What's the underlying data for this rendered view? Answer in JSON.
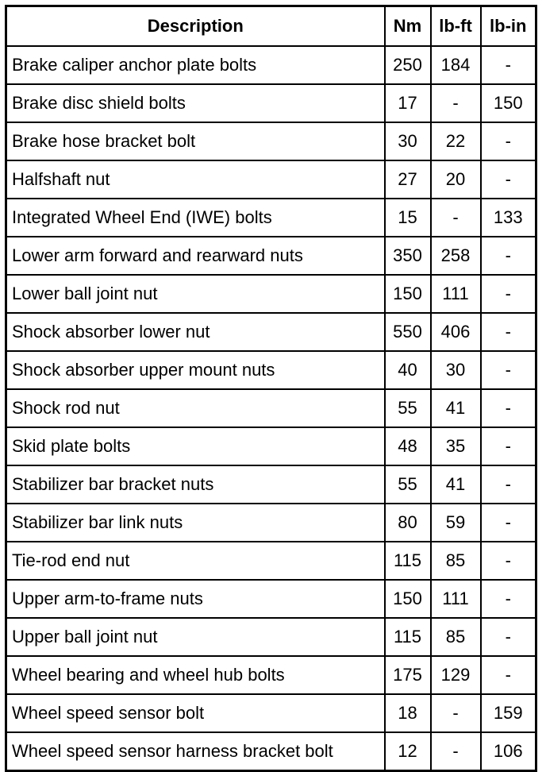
{
  "table": {
    "header": [
      "Description",
      "Nm",
      "lb-ft",
      "lb-in"
    ],
    "rows": [
      [
        "Brake caliper anchor plate bolts",
        250,
        184,
        "-"
      ],
      [
        "Brake disc shield bolts",
        17,
        "-",
        150
      ],
      [
        "Brake hose bracket bolt",
        30,
        22,
        "-"
      ],
      [
        "Halfshaft nut",
        27,
        20,
        "-"
      ],
      [
        "Integrated Wheel End (IWE) bolts",
        15,
        "-",
        133
      ],
      [
        "Lower arm forward and rearward nuts",
        350,
        258,
        "-"
      ],
      [
        "Lower ball joint nut",
        150,
        111,
        "-"
      ],
      [
        "Shock absorber lower nut",
        550,
        406,
        "-"
      ],
      [
        "Shock absorber upper mount nuts",
        40,
        30,
        "-"
      ],
      [
        "Shock rod nut",
        55,
        41,
        "-"
      ],
      [
        "Skid plate bolts",
        48,
        35,
        "-"
      ],
      [
        "Stabilizer bar bracket nuts",
        55,
        41,
        "-"
      ],
      [
        "Stabilizer bar link nuts",
        80,
        59,
        "-"
      ],
      [
        "Tie-rod end nut",
        115,
        85,
        "-"
      ],
      [
        "Upper arm-to-frame nuts",
        150,
        111,
        "-"
      ],
      [
        "Upper ball joint nut",
        115,
        85,
        "-"
      ],
      [
        "Wheel bearing and wheel hub bolts",
        175,
        129,
        "-"
      ],
      [
        "Wheel speed sensor bolt",
        18,
        "-",
        159
      ],
      [
        "Wheel speed sensor harness bracket bolt",
        12,
        "-",
        106
      ]
    ]
  }
}
